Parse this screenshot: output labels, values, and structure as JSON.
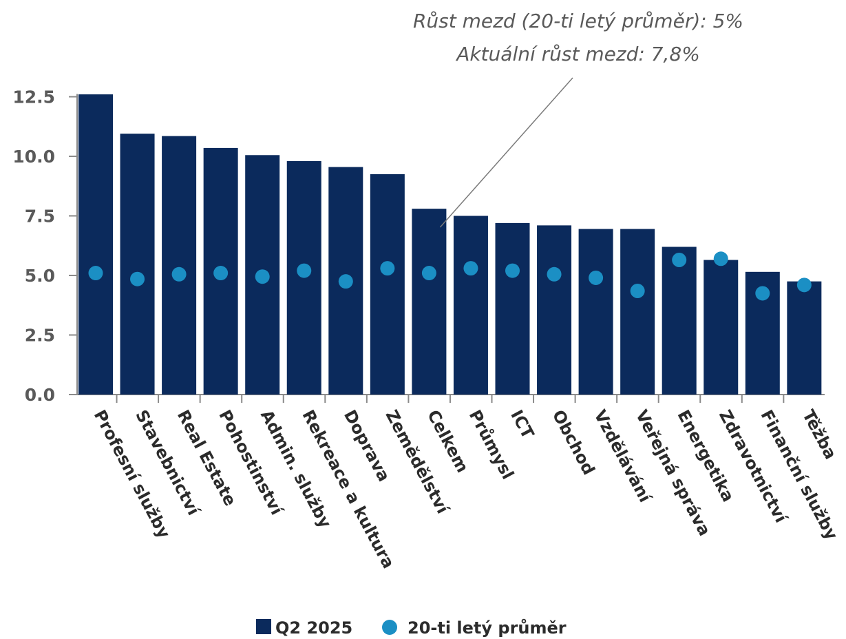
{
  "chart_data": {
    "type": "bar",
    "categories": [
      "Profesní služby",
      "Stavebnictví",
      "Real Estate",
      "Pohostinství",
      "Admin. služby",
      "Rekreace a kultura",
      "Doprava",
      "Zemědělství",
      "Celkem",
      "Průmysl",
      "ICT",
      "Obchod",
      "Vzdělávání",
      "Veřejná správa",
      "Energetika",
      "Zdravotnictví",
      "Finanční služby",
      "Těžba"
    ],
    "series": [
      {
        "name": "Q2 2025",
        "kind": "bar",
        "color": "#0b2a5c",
        "values": [
          12.6,
          10.95,
          10.85,
          10.35,
          10.05,
          9.8,
          9.55,
          9.25,
          7.8,
          7.5,
          7.2,
          7.1,
          6.95,
          6.95,
          6.2,
          5.65,
          5.15,
          4.75
        ]
      },
      {
        "name": "20-ti letý průměr",
        "kind": "scatter",
        "color": "#1b8fc4",
        "values": [
          5.1,
          4.85,
          5.05,
          5.1,
          4.95,
          5.2,
          4.75,
          5.3,
          5.1,
          5.3,
          5.2,
          5.05,
          4.9,
          4.35,
          5.65,
          5.7,
          4.25,
          4.6
        ]
      }
    ],
    "ylim": [
      0,
      12.5
    ],
    "yticks": [
      "0.0",
      "2.5",
      "5.0",
      "7.5",
      "10.0",
      "12.5"
    ],
    "ytick_values": [
      0,
      2.5,
      5,
      7.5,
      10,
      12.5
    ],
    "annotation": {
      "lines": [
        "Růst mezd (20-ti letý průměr): 5%",
        "Aktuální růst mezd: 7,8%"
      ],
      "target_category": "Celkem"
    },
    "legend": {
      "position": "bottom-center",
      "items": [
        {
          "label": "Q2 2025",
          "marker": "square",
          "color": "#0b2a5c"
        },
        {
          "label": "20-ti letý průměr",
          "marker": "circle",
          "color": "#1b8fc4"
        }
      ]
    },
    "grid": false
  }
}
